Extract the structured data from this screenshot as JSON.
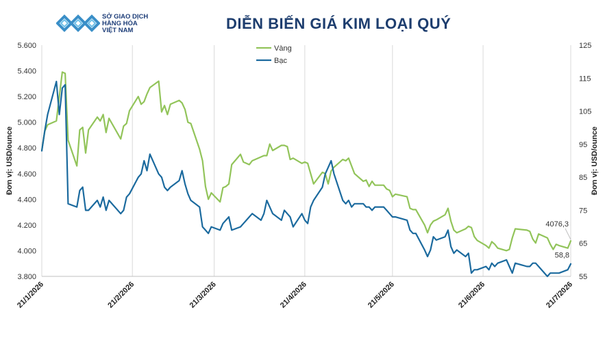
{
  "header": {
    "logo_line1": "SỞ GIAO DỊCH",
    "logo_line2": "HÀNG HÓA",
    "logo_line3": "VIỆT NAM",
    "title": "DIỄN BIẾN GIÁ KIM LOẠI QUÝ"
  },
  "colors": {
    "gold": "#92c45a",
    "silver": "#1b6a9e",
    "title": "#1d3d6e",
    "logo": "#3a8fc8"
  },
  "chart_data": {
    "type": "line",
    "title": "DIỄN BIẾN GIÁ KIM LOẠI QUÝ",
    "ylabel_left": "Đơn vị: USD/ounce",
    "ylabel_right": "Đơn vị: USD/ounce",
    "ylim_left": [
      3800,
      5600
    ],
    "ylim_right": [
      55,
      125
    ],
    "yticks_left": [
      "3.800",
      "4.000",
      "4.200",
      "4.400",
      "4.600",
      "4.800",
      "5.000",
      "5.200",
      "5.400",
      "5.600"
    ],
    "yticks_right": [
      "55",
      "65",
      "75",
      "85",
      "95",
      "105",
      "115",
      "125"
    ],
    "x_ticks": [
      "21/1/2026",
      "21/2/2026",
      "21/3/2026",
      "21/4/2026",
      "21/5/2026",
      "21/6/2026",
      "21/7/2026"
    ],
    "legend_position": "top-center",
    "grid": "vertical",
    "series": [
      {
        "name": "Vàng",
        "axis": "left",
        "last_label": "4076,3",
        "x": [
          "2026-01-21",
          "2026-01-22",
          "2026-01-23",
          "2026-01-26",
          "2026-01-27",
          "2026-01-28",
          "2026-01-29",
          "2026-01-30",
          "2026-02-02",
          "2026-02-03",
          "2026-02-04",
          "2026-02-05",
          "2026-02-06",
          "2026-02-09",
          "2026-02-10",
          "2026-02-11",
          "2026-02-12",
          "2026-02-13",
          "2026-02-17",
          "2026-02-18",
          "2026-02-19",
          "2026-02-20",
          "2026-02-23",
          "2026-02-24",
          "2026-02-25",
          "2026-02-26",
          "2026-02-27",
          "2026-03-02",
          "2026-03-03",
          "2026-03-04",
          "2026-03-05",
          "2026-03-06",
          "2026-03-09",
          "2026-03-10",
          "2026-03-11",
          "2026-03-12",
          "2026-03-13",
          "2026-03-16",
          "2026-03-17",
          "2026-03-18",
          "2026-03-19",
          "2026-03-20",
          "2026-03-23",
          "2026-03-24",
          "2026-03-25",
          "2026-03-26",
          "2026-03-27",
          "2026-03-30",
          "2026-03-31",
          "2026-04-01",
          "2026-04-02",
          "2026-04-03",
          "2026-04-06",
          "2026-04-07",
          "2026-04-08",
          "2026-04-09",
          "2026-04-10",
          "2026-04-13",
          "2026-04-14",
          "2026-04-15",
          "2026-04-16",
          "2026-04-17",
          "2026-04-20",
          "2026-04-21",
          "2026-04-22",
          "2026-04-23",
          "2026-04-24",
          "2026-04-27",
          "2026-04-28",
          "2026-04-29",
          "2026-04-30",
          "2026-05-01",
          "2026-05-04",
          "2026-05-05",
          "2026-05-06",
          "2026-05-07",
          "2026-05-08",
          "2026-05-11",
          "2026-05-12",
          "2026-05-13",
          "2026-05-14",
          "2026-05-15",
          "2026-05-18",
          "2026-05-19",
          "2026-05-20",
          "2026-05-21",
          "2026-05-22",
          "2026-05-26",
          "2026-05-27",
          "2026-05-28",
          "2026-05-29",
          "2026-06-01",
          "2026-06-02",
          "2026-06-03",
          "2026-06-04",
          "2026-06-05",
          "2026-06-08",
          "2026-06-09",
          "2026-06-10",
          "2026-06-11",
          "2026-06-12",
          "2026-06-15",
          "2026-06-16",
          "2026-06-17",
          "2026-06-18",
          "2026-06-19",
          "2026-06-22",
          "2026-06-23",
          "2026-06-24",
          "2026-06-25",
          "2026-06-26",
          "2026-06-29",
          "2026-06-30",
          "2026-07-01",
          "2026-07-02",
          "2026-07-06",
          "2026-07-07",
          "2026-07-08",
          "2026-07-09",
          "2026-07-10",
          "2026-07-13",
          "2026-07-14",
          "2026-07-15",
          "2026-07-16",
          "2026-07-17",
          "2026-07-20",
          "2026-07-21"
        ],
        "y": [
          4780,
          4930,
          4980,
          5010,
          5200,
          5390,
          5380,
          4860,
          4660,
          4940,
          4960,
          4760,
          4940,
          5040,
          5010,
          5060,
          4920,
          5030,
          4870,
          4970,
          4990,
          5090,
          5200,
          5140,
          5160,
          5220,
          5270,
          5320,
          5080,
          5130,
          5060,
          5140,
          5170,
          5150,
          5100,
          5000,
          4990,
          4790,
          4700,
          4500,
          4400,
          4450,
          4380,
          4490,
          4500,
          4520,
          4670,
          4750,
          4690,
          4680,
          4670,
          4700,
          4730,
          4740,
          4740,
          4830,
          4780,
          4820,
          4820,
          4810,
          4710,
          4720,
          4680,
          4690,
          4680,
          4600,
          4520,
          4610,
          4600,
          4520,
          4620,
          4650,
          4710,
          4700,
          4720,
          4660,
          4600,
          4540,
          4550,
          4500,
          4540,
          4510,
          4510,
          4480,
          4470,
          4420,
          4440,
          4420,
          4330,
          4320,
          4320,
          4200,
          4140,
          4200,
          4230,
          4240,
          4280,
          4330,
          4230,
          4160,
          4140,
          4170,
          4190,
          4180,
          4110,
          4080,
          4040,
          4020,
          4070,
          4050,
          4020,
          4000,
          4010,
          4100,
          4170,
          4160,
          4150,
          4090,
          4060,
          4130,
          4100,
          4050,
          4010,
          4050,
          4040,
          4020,
          4076.3
        ]
      },
      {
        "name": "Bạc",
        "axis": "right",
        "last_label": "58,8",
        "x": [
          "2026-01-21",
          "2026-01-22",
          "2026-01-23",
          "2026-01-26",
          "2026-01-27",
          "2026-01-28",
          "2026-01-29",
          "2026-01-30",
          "2026-02-02",
          "2026-02-03",
          "2026-02-04",
          "2026-02-05",
          "2026-02-06",
          "2026-02-09",
          "2026-02-10",
          "2026-02-11",
          "2026-02-12",
          "2026-02-13",
          "2026-02-17",
          "2026-02-18",
          "2026-02-19",
          "2026-02-20",
          "2026-02-23",
          "2026-02-24",
          "2026-02-25",
          "2026-02-26",
          "2026-02-27",
          "2026-03-02",
          "2026-03-03",
          "2026-03-04",
          "2026-03-05",
          "2026-03-06",
          "2026-03-09",
          "2026-03-10",
          "2026-03-11",
          "2026-03-12",
          "2026-03-13",
          "2026-03-16",
          "2026-03-17",
          "2026-03-18",
          "2026-03-19",
          "2026-03-20",
          "2026-03-23",
          "2026-03-24",
          "2026-03-25",
          "2026-03-26",
          "2026-03-27",
          "2026-03-30",
          "2026-03-31",
          "2026-04-01",
          "2026-04-02",
          "2026-04-03",
          "2026-04-06",
          "2026-04-07",
          "2026-04-08",
          "2026-04-09",
          "2026-04-10",
          "2026-04-13",
          "2026-04-14",
          "2026-04-15",
          "2026-04-16",
          "2026-04-17",
          "2026-04-20",
          "2026-04-21",
          "2026-04-22",
          "2026-04-23",
          "2026-04-24",
          "2026-04-27",
          "2026-04-28",
          "2026-04-29",
          "2026-04-30",
          "2026-05-01",
          "2026-05-04",
          "2026-05-05",
          "2026-05-06",
          "2026-05-07",
          "2026-05-08",
          "2026-05-11",
          "2026-05-12",
          "2026-05-13",
          "2026-05-14",
          "2026-05-15",
          "2026-05-18",
          "2026-05-19",
          "2026-05-20",
          "2026-05-21",
          "2026-05-22",
          "2026-05-26",
          "2026-05-27",
          "2026-05-28",
          "2026-05-29",
          "2026-06-01",
          "2026-06-02",
          "2026-06-03",
          "2026-06-04",
          "2026-06-05",
          "2026-06-08",
          "2026-06-09",
          "2026-06-10",
          "2026-06-11",
          "2026-06-12",
          "2026-06-15",
          "2026-06-16",
          "2026-06-17",
          "2026-06-18",
          "2026-06-19",
          "2026-06-22",
          "2026-06-23",
          "2026-06-24",
          "2026-06-25",
          "2026-06-26",
          "2026-06-29",
          "2026-06-30",
          "2026-07-01",
          "2026-07-02",
          "2026-07-06",
          "2026-07-07",
          "2026-07-08",
          "2026-07-09",
          "2026-07-10",
          "2026-07-13",
          "2026-07-14",
          "2026-07-15",
          "2026-07-16",
          "2026-07-17",
          "2026-07-20",
          "2026-07-21"
        ],
        "y": [
          93,
          99,
          104,
          114,
          104,
          112,
          113,
          77,
          76,
          81,
          82,
          75,
          75,
          78,
          76,
          79,
          75,
          78,
          74,
          75,
          79,
          80,
          85,
          86,
          90,
          87,
          92,
          86,
          85,
          82,
          81,
          82,
          84,
          87,
          83,
          80,
          78,
          76,
          70,
          69,
          68,
          70,
          69,
          71,
          72,
          73,
          69,
          70,
          71,
          72,
          73,
          74,
          72,
          74,
          78,
          76,
          74,
          72,
          75,
          74,
          73,
          70,
          74,
          72,
          71,
          76,
          78,
          82,
          86,
          88,
          90,
          86,
          78,
          77,
          78,
          76,
          77,
          77,
          76,
          76,
          75,
          76,
          76,
          75,
          74,
          73,
          73,
          72,
          69,
          68,
          68,
          63,
          61,
          63,
          67,
          66,
          67,
          69,
          64,
          62,
          63,
          61,
          62,
          56,
          57,
          57,
          58,
          57,
          59,
          58,
          59,
          60,
          58,
          56,
          59,
          58,
          58,
          59,
          59,
          58,
          55,
          56,
          56,
          56,
          56,
          57,
          58.8
        ]
      }
    ]
  }
}
